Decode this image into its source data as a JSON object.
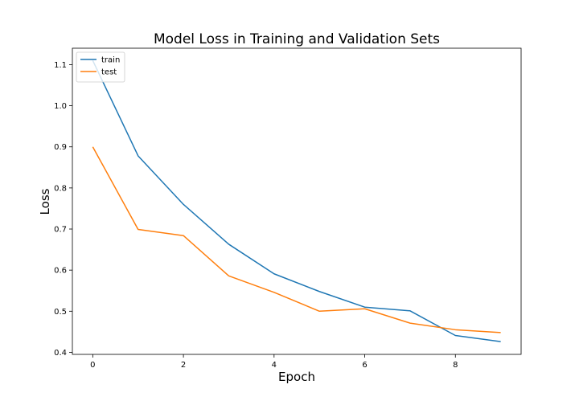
{
  "chart_data": {
    "type": "line",
    "title": "Model Loss in Training and Validation Sets",
    "xlabel": "Epoch",
    "ylabel": "Loss",
    "x": [
      0,
      1,
      2,
      3,
      4,
      5,
      6,
      7,
      8,
      9
    ],
    "xlim": [
      -0.45,
      9.45
    ],
    "ylim": [
      0.395,
      1.14
    ],
    "xticks": [
      0,
      2,
      4,
      6,
      8
    ],
    "yticks": [
      0.4,
      0.5,
      0.6,
      0.7,
      0.8,
      0.9,
      1.0,
      1.1
    ],
    "ytick_labels": [
      "0.4",
      "0.5",
      "0.6",
      "0.7",
      "0.8",
      "0.9",
      "1.0",
      "1.1"
    ],
    "grid": false,
    "legend_position": "top-left",
    "series": [
      {
        "name": "train",
        "color": "#1f77b4",
        "values": [
          1.11,
          0.878,
          0.76,
          0.663,
          0.591,
          0.548,
          0.51,
          0.501,
          0.441,
          0.426
        ]
      },
      {
        "name": "test",
        "color": "#ff7f0e",
        "values": [
          0.9,
          0.699,
          0.684,
          0.586,
          0.546,
          0.5,
          0.506,
          0.471,
          0.455,
          0.448
        ]
      }
    ]
  }
}
